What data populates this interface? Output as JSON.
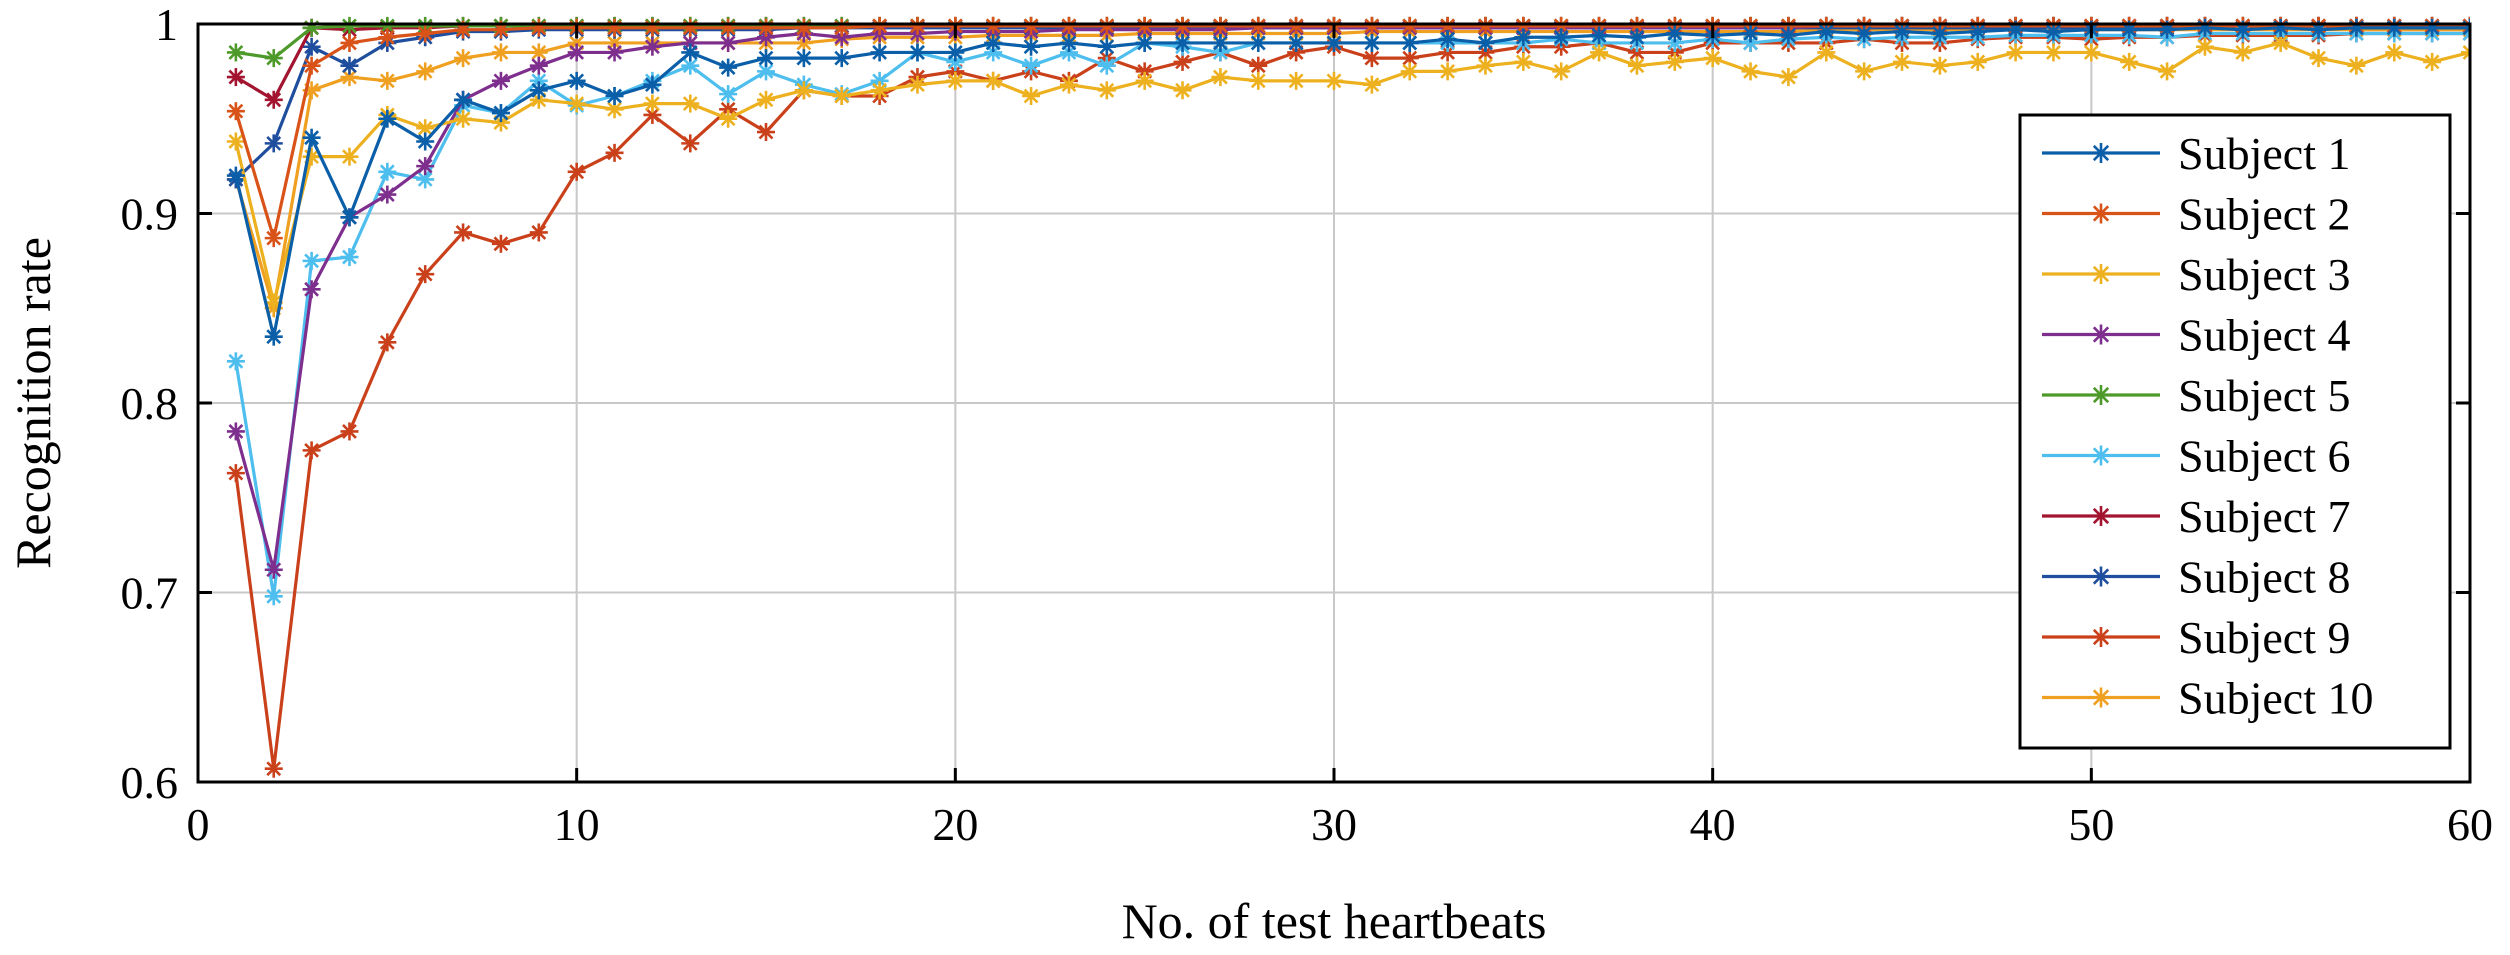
{
  "chart_data": {
    "type": "line",
    "title": "",
    "xlabel": "No. of test heartbeats",
    "ylabel": "Recognition rate",
    "xlim": [
      0,
      60
    ],
    "ylim": [
      0.6,
      1.0
    ],
    "xticks": [
      0,
      10,
      20,
      30,
      40,
      50,
      60
    ],
    "yticks": [
      0.6,
      0.7,
      0.8,
      0.9,
      1
    ],
    "xtick_labels": [
      "0",
      "10",
      "20",
      "30",
      "40",
      "50",
      "60"
    ],
    "ytick_labels": [
      "0.6",
      "0.7",
      "0.8",
      "0.9",
      "1"
    ],
    "grid": true,
    "legend_position": "right",
    "marker": "asterisk",
    "x": [
      1,
      2,
      3,
      4,
      5,
      6,
      7,
      8,
      9,
      10,
      11,
      12,
      13,
      14,
      15,
      16,
      17,
      18,
      19,
      20,
      21,
      22,
      23,
      24,
      25,
      26,
      27,
      28,
      29,
      30,
      31,
      32,
      33,
      34,
      35,
      36,
      37,
      38,
      39,
      40,
      41,
      42,
      43,
      44,
      45,
      46,
      47,
      48,
      49,
      50,
      51,
      52,
      53,
      54,
      55,
      56,
      57,
      58,
      59,
      60
    ],
    "series": [
      {
        "name": "Subject 1",
        "color": "#0b5ea8",
        "values": [
          0.92,
          0.835,
          0.94,
          0.898,
          0.95,
          0.938,
          0.96,
          0.953,
          0.965,
          0.97,
          0.962,
          0.968,
          0.985,
          0.977,
          0.982,
          0.982,
          0.982,
          0.985,
          0.985,
          0.985,
          0.99,
          0.988,
          0.99,
          0.988,
          0.99,
          0.99,
          0.99,
          0.99,
          0.99,
          0.99,
          0.99,
          0.99,
          0.992,
          0.99,
          0.993,
          0.993,
          0.994,
          0.993,
          0.995,
          0.994,
          0.995,
          0.994,
          0.996,
          0.995,
          0.996,
          0.995,
          0.996,
          0.997,
          0.996,
          0.997,
          0.997,
          0.997,
          0.998,
          0.997,
          0.998,
          0.997,
          0.998,
          0.998,
          0.998,
          0.998
        ]
      },
      {
        "name": "Subject 2",
        "color": "#d95319",
        "values": [
          0.954,
          0.887,
          0.978,
          0.99,
          0.993,
          0.995,
          0.997,
          0.997,
          0.998,
          0.998,
          0.998,
          0.998,
          0.998,
          0.998,
          0.998,
          0.998,
          0.998,
          0.999,
          0.999,
          0.999,
          0.999,
          0.999,
          0.999,
          0.999,
          0.999,
          0.999,
          0.999,
          0.999,
          0.999,
          0.999,
          0.999,
          0.999,
          0.999,
          0.999,
          0.999,
          0.999,
          0.999,
          0.999,
          0.999,
          0.999,
          0.999,
          0.999,
          0.999,
          0.999,
          0.999,
          0.999,
          0.999,
          0.999,
          0.999,
          0.999,
          0.999,
          0.999,
          0.999,
          0.999,
          0.999,
          0.999,
          0.999,
          0.999,
          0.999,
          0.999
        ]
      },
      {
        "name": "Subject 3",
        "color": "#edb120",
        "values": [
          0.938,
          0.853,
          0.93,
          0.93,
          0.952,
          0.945,
          0.95,
          0.948,
          0.96,
          0.958,
          0.955,
          0.958,
          0.958,
          0.95,
          0.96,
          0.965,
          0.962,
          0.965,
          0.968,
          0.97,
          0.97,
          0.962,
          0.968,
          0.965,
          0.97,
          0.965,
          0.972,
          0.97,
          0.97,
          0.97,
          0.968,
          0.975,
          0.975,
          0.978,
          0.98,
          0.975,
          0.985,
          0.978,
          0.98,
          0.982,
          0.975,
          0.972,
          0.985,
          0.975,
          0.98,
          0.978,
          0.98,
          0.985,
          0.985,
          0.985,
          0.98,
          0.975,
          0.988,
          0.985,
          0.99,
          0.982,
          0.978,
          0.985,
          0.98,
          0.985
        ]
      },
      {
        "name": "Subject 4",
        "color": "#7e2f8e",
        "values": [
          0.785,
          0.712,
          0.86,
          0.898,
          0.91,
          0.925,
          0.96,
          0.97,
          0.978,
          0.985,
          0.985,
          0.988,
          0.99,
          0.99,
          0.993,
          0.995,
          0.993,
          0.995,
          0.995,
          0.996,
          0.996,
          0.996,
          0.997,
          0.997,
          0.997,
          0.997,
          0.997,
          0.998,
          0.998,
          0.998,
          0.998,
          0.998,
          0.998,
          0.998,
          0.998,
          0.998,
          0.998,
          0.998,
          0.998,
          0.998,
          0.998,
          0.998,
          0.999,
          0.999,
          0.999,
          0.999,
          0.999,
          0.999,
          0.999,
          0.999,
          0.999,
          0.999,
          0.999,
          0.999,
          0.999,
          0.999,
          0.999,
          0.999,
          0.999,
          0.999
        ]
      },
      {
        "name": "Subject 5",
        "color": "#4d9a2a",
        "values": [
          0.985,
          0.982,
          0.998,
          0.999,
          0.999,
          0.999,
          0.999,
          0.999,
          0.999,
          0.999,
          0.999,
          0.999,
          0.999,
          0.999,
          0.999,
          0.999,
          0.999,
          0.999,
          0.999,
          0.999,
          0.999,
          0.999,
          0.999,
          0.999,
          0.999,
          0.999,
          0.999,
          0.999,
          0.999,
          0.999,
          0.999,
          0.999,
          0.999,
          0.999,
          0.999,
          0.999,
          0.999,
          0.999,
          0.999,
          0.999,
          0.999,
          0.999,
          0.999,
          0.999,
          0.999,
          0.999,
          0.999,
          0.999,
          0.999,
          0.999,
          0.999,
          0.999,
          0.999,
          0.999,
          0.999,
          0.999,
          0.999,
          0.999,
          0.999,
          0.999
        ]
      },
      {
        "name": "Subject 6",
        "color": "#4dbeee",
        "values": [
          0.822,
          0.698,
          0.875,
          0.877,
          0.922,
          0.918,
          0.957,
          0.953,
          0.97,
          0.957,
          0.962,
          0.97,
          0.978,
          0.963,
          0.975,
          0.968,
          0.963,
          0.97,
          0.985,
          0.98,
          0.985,
          0.978,
          0.985,
          0.978,
          0.99,
          0.988,
          0.985,
          0.99,
          0.99,
          0.99,
          0.99,
          0.99,
          0.99,
          0.99,
          0.99,
          0.992,
          0.99,
          0.99,
          0.99,
          0.992,
          0.99,
          0.992,
          0.993,
          0.992,
          0.993,
          0.993,
          0.993,
          0.994,
          0.994,
          0.994,
          0.994,
          0.993,
          0.995,
          0.995,
          0.995,
          0.995,
          0.995,
          0.995,
          0.995,
          0.995
        ]
      },
      {
        "name": "Subject 7",
        "color": "#a2142f",
        "values": [
          0.972,
          0.96,
          0.998,
          0.997,
          0.998,
          0.998,
          0.999,
          0.999,
          0.999,
          0.999,
          0.999,
          0.999,
          0.999,
          0.999,
          0.999,
          0.999,
          0.999,
          0.999,
          0.999,
          0.999,
          0.999,
          0.999,
          0.999,
          0.999,
          0.999,
          0.999,
          0.999,
          0.999,
          0.999,
          0.999,
          0.999,
          0.999,
          0.999,
          0.999,
          0.999,
          0.999,
          0.999,
          0.999,
          0.999,
          0.999,
          0.999,
          0.999,
          0.999,
          0.999,
          0.999,
          0.999,
          0.999,
          0.999,
          0.999,
          0.999,
          0.999,
          0.999,
          0.999,
          0.999,
          0.999,
          0.999,
          0.999,
          0.999,
          0.999,
          0.999
        ]
      },
      {
        "name": "Subject 8",
        "color": "#1f4e9e",
        "values": [
          0.918,
          0.937,
          0.988,
          0.978,
          0.99,
          0.993,
          0.996,
          0.996,
          0.997,
          0.997,
          0.997,
          0.997,
          0.997,
          0.997,
          0.997,
          0.998,
          0.998,
          0.998,
          0.998,
          0.998,
          0.998,
          0.998,
          0.998,
          0.998,
          0.998,
          0.998,
          0.998,
          0.998,
          0.998,
          0.998,
          0.998,
          0.998,
          0.998,
          0.998,
          0.998,
          0.998,
          0.998,
          0.998,
          0.998,
          0.998,
          0.998,
          0.998,
          0.998,
          0.998,
          0.998,
          0.998,
          0.998,
          0.998,
          0.998,
          0.998,
          0.998,
          0.998,
          0.998,
          0.998,
          0.998,
          0.998,
          0.998,
          0.998,
          0.998,
          0.998
        ]
      },
      {
        "name": "Subject 9",
        "color": "#c9401a",
        "values": [
          0.763,
          0.607,
          0.775,
          0.785,
          0.832,
          0.868,
          0.89,
          0.884,
          0.89,
          0.922,
          0.932,
          0.952,
          0.937,
          0.955,
          0.943,
          0.965,
          0.962,
          0.962,
          0.972,
          0.975,
          0.97,
          0.975,
          0.97,
          0.982,
          0.975,
          0.98,
          0.985,
          0.978,
          0.985,
          0.988,
          0.982,
          0.982,
          0.985,
          0.985,
          0.988,
          0.988,
          0.99,
          0.985,
          0.985,
          0.99,
          0.99,
          0.99,
          0.99,
          0.992,
          0.99,
          0.99,
          0.992,
          0.993,
          0.993,
          0.992,
          0.993,
          0.993,
          0.994,
          0.994,
          0.994,
          0.994,
          0.995,
          0.995,
          0.995,
          0.995
        ]
      },
      {
        "name": "Subject 10",
        "color": "#f0a020",
        "values": [
          0.918,
          0.85,
          0.965,
          0.972,
          0.97,
          0.975,
          0.982,
          0.985,
          0.985,
          0.99,
          0.99,
          0.99,
          0.99,
          0.99,
          0.99,
          0.99,
          0.992,
          0.993,
          0.993,
          0.993,
          0.994,
          0.994,
          0.994,
          0.994,
          0.995,
          0.995,
          0.995,
          0.995,
          0.995,
          0.995,
          0.996,
          0.996,
          0.996,
          0.996,
          0.996,
          0.996,
          0.996,
          0.996,
          0.996,
          0.996,
          0.996,
          0.996,
          0.997,
          0.997,
          0.997,
          0.997,
          0.997,
          0.997,
          0.997,
          0.997,
          0.997,
          0.997,
          0.997,
          0.997,
          0.997,
          0.997,
          0.997,
          0.997,
          0.997,
          0.997
        ]
      }
    ]
  }
}
